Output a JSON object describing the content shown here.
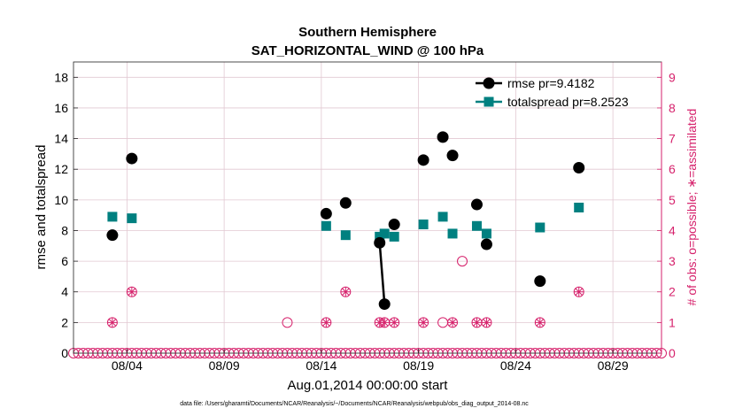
{
  "chart_data": {
    "type": "scatter",
    "title": [
      "Southern Hemisphere",
      "SAT_HORIZONTAL_WIND @ 100 hPa"
    ],
    "xlabel": "Aug.01,2014 00:00:00 start",
    "ylabel_left": "rmse and totalspread",
    "ylabel_right": "# of obs: o=possible; ∗=assimilated",
    "footnote": "data file: /Users/gharamti/Documents/NCAR/Reanalysis/~/Documents/NCAR/Reanalysis/webpub/obs_diag_output_2014-08.nc",
    "xlim": [
      1.0,
      31.25
    ],
    "ylim_left": [
      0,
      19
    ],
    "ylim_right": [
      0,
      9.5
    ],
    "x_ticks": [
      3.75,
      8.75,
      13.75,
      18.75,
      23.75,
      28.75
    ],
    "x_tick_labels": [
      "08/04",
      "08/09",
      "08/14",
      "08/19",
      "08/24",
      "08/29"
    ],
    "y_ticks_left": [
      0,
      2,
      4,
      6,
      8,
      10,
      12,
      14,
      16,
      18
    ],
    "y_ticks_right": [
      0,
      1,
      2,
      3,
      4,
      5,
      6,
      7,
      8,
      9
    ],
    "grid": true,
    "legend_position": "top-right",
    "legend": [
      {
        "label": "rmse pr=9.4182",
        "color": "#000000",
        "marker": "circle"
      },
      {
        "label": "totalspread pr=8.2523",
        "color": "#008080",
        "marker": "square"
      }
    ],
    "colors": {
      "rmse": "#000000",
      "spread": "#008080",
      "obs": "#d6226c",
      "grid": "#e2c8d2"
    },
    "series": [
      {
        "name": "rmse",
        "x": [
          3.0,
          4.0,
          14.0,
          15.0,
          16.75,
          17.0,
          17.5,
          19.0,
          20.0,
          20.5,
          21.75,
          22.25,
          25.0,
          27.0
        ],
        "values": [
          7.7,
          12.7,
          9.1,
          9.8,
          7.2,
          3.2,
          8.4,
          12.6,
          14.1,
          12.9,
          9.7,
          7.1,
          4.7,
          12.1
        ],
        "connect": [
          [
            16.75,
            17.0
          ]
        ]
      },
      {
        "name": "totalspread",
        "x": [
          3.0,
          4.0,
          14.0,
          15.0,
          16.75,
          17.0,
          17.5,
          19.0,
          20.0,
          20.5,
          21.75,
          22.25,
          25.0,
          27.0
        ],
        "values": [
          8.9,
          8.8,
          8.3,
          7.7,
          7.6,
          7.8,
          7.6,
          8.4,
          8.9,
          7.8,
          8.3,
          7.8,
          8.2,
          9.5
        ]
      }
    ],
    "obs_possible": {
      "x": [
        3.0,
        4.0,
        12.0,
        14.0,
        15.0,
        16.75,
        17.0,
        17.5,
        19.0,
        20.0,
        20.5,
        21.0,
        21.75,
        22.25,
        25.0,
        27.0
      ],
      "values": [
        1,
        2,
        1,
        1,
        2,
        1,
        1,
        1,
        1,
        1,
        1,
        3,
        1,
        1,
        1,
        2
      ]
    },
    "obs_assimilated": {
      "x": [
        3.0,
        4.0,
        14.0,
        15.0,
        16.75,
        17.0,
        17.5,
        19.0,
        20.5,
        21.75,
        22.25,
        25.0,
        27.0
      ],
      "values": [
        1,
        2,
        1,
        2,
        1,
        1,
        1,
        1,
        1,
        1,
        1,
        1,
        2
      ]
    },
    "obs_baseline": {
      "start": 1.0,
      "end": 31.25,
      "step": 0.25,
      "value": 0
    }
  }
}
